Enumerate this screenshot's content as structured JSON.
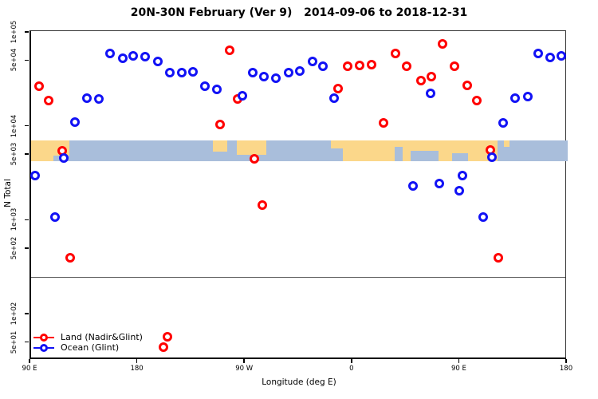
{
  "title": "20N-30N February (Ver 9)   2014-09-06 to 2018-12-31",
  "chart_data": {
    "type": "scatter",
    "title": "20N-30N February (Ver 9)   2014-09-06 to 2018-12-31",
    "xlabel": "Longitude (deg E)",
    "ylabel": "N Total",
    "x_axis": {
      "range": [
        90,
        540
      ],
      "note": "longitude axis wraps eastward: 90E to 180 to 90W to 0 to 90E to 180",
      "ticks": [
        90,
        180,
        270,
        360,
        450,
        540
      ],
      "tick_labels": [
        "90 E",
        "180",
        "90 W",
        "0",
        "90 E",
        "180"
      ]
    },
    "y_axis": {
      "scale": "log10",
      "log_range": [
        1.517,
        5.017
      ],
      "ticks": [
        100000,
        50000,
        10000,
        5000,
        1000,
        500,
        100,
        50
      ],
      "tick_labels": [
        "1e+05",
        "5e+04",
        "1e+04",
        "5e+03",
        "1e+03",
        "5e+02",
        "1e+02",
        "5e+01"
      ]
    },
    "reference_line_y": 250,
    "map_band": {
      "description": "strip map of Earth 20N-30N drawn across the plot",
      "y_top_value": 7100,
      "y_bottom_value": 4300,
      "ocean_color": "#A9BEDB",
      "land_color": "#FBD78A",
      "land_segments": [
        {
          "from": 90,
          "to": 122,
          "y0": 0,
          "y1": 0.75
        },
        {
          "from": 90,
          "to": 109,
          "y0": 0.7,
          "y1": 1.0
        },
        {
          "from": 242.5,
          "to": 254.5,
          "y0": 0,
          "y1": 0.55
        },
        {
          "from": 262.5,
          "to": 287,
          "y0": 0,
          "y1": 0.7
        },
        {
          "from": 341.5,
          "to": 351.5,
          "y0": 0,
          "y1": 0.4
        },
        {
          "from": 351.5,
          "to": 481,
          "y0": 0,
          "y1": 1.0
        },
        {
          "from": 486.5,
          "to": 491.5,
          "y0": 0,
          "y1": 0.3
        }
      ],
      "ocean_notches": [
        {
          "from": 395,
          "to": 401.5,
          "y0": 0.3,
          "y1": 1.0
        },
        {
          "from": 408.5,
          "to": 431.5,
          "y0": 0.5,
          "y1": 1.0
        },
        {
          "from": 443,
          "to": 456.5,
          "y0": 0.6,
          "y1": 1.0
        }
      ]
    },
    "series": [
      {
        "name": "Land (Nadir&Glint)",
        "color": "#FF0000",
        "points": [
          {
            "x": 96.7,
            "y": 27000
          },
          {
            "x": 104.5,
            "y": 18800
          },
          {
            "x": 256.7,
            "y": 64700
          },
          {
            "x": 263.4,
            "y": 19700
          },
          {
            "x": 347.6,
            "y": 25600
          },
          {
            "x": 355.7,
            "y": 44300
          },
          {
            "x": 365.3,
            "y": 45100
          },
          {
            "x": 375.5,
            "y": 45500
          },
          {
            "x": 395.4,
            "y": 60100
          },
          {
            "x": 404.7,
            "y": 44300
          },
          {
            "x": 417.0,
            "y": 31100
          },
          {
            "x": 425.9,
            "y": 33900
          },
          {
            "x": 435.0,
            "y": 76500
          },
          {
            "x": 445.3,
            "y": 44300
          },
          {
            "x": 455.8,
            "y": 27700
          },
          {
            "x": 463.6,
            "y": 19000
          },
          {
            "x": 248.5,
            "y": 10600
          },
          {
            "x": 385.7,
            "y": 11000
          },
          {
            "x": 115.9,
            "y": 5560
          },
          {
            "x": 277.4,
            "y": 4520
          },
          {
            "x": 475.0,
            "y": 5670
          },
          {
            "x": 283.7,
            "y": 1460
          },
          {
            "x": 123.0,
            "y": 400
          },
          {
            "x": 481.8,
            "y": 400
          },
          {
            "x": 204.1,
            "y": 58
          },
          {
            "x": 201.2,
            "y": 45
          }
        ]
      },
      {
        "name": "Ocean (Glint)",
        "color": "#1212F5",
        "points": [
          {
            "x": 126.8,
            "y": 11200
          },
          {
            "x": 136.8,
            "y": 20100
          },
          {
            "x": 146.8,
            "y": 19700
          },
          {
            "x": 156.0,
            "y": 60100
          },
          {
            "x": 166.9,
            "y": 53500
          },
          {
            "x": 175.6,
            "y": 56700
          },
          {
            "x": 185.8,
            "y": 55300
          },
          {
            "x": 196.3,
            "y": 49200
          },
          {
            "x": 206.3,
            "y": 37400
          },
          {
            "x": 216.4,
            "y": 37600
          },
          {
            "x": 225.7,
            "y": 38600
          },
          {
            "x": 235.6,
            "y": 26800
          },
          {
            "x": 245.6,
            "y": 25100
          },
          {
            "x": 267.0,
            "y": 21400
          },
          {
            "x": 276.1,
            "y": 37400
          },
          {
            "x": 285.2,
            "y": 33900
          },
          {
            "x": 295.5,
            "y": 33000
          },
          {
            "x": 306.0,
            "y": 37400
          },
          {
            "x": 315.5,
            "y": 38900
          },
          {
            "x": 325.8,
            "y": 49800
          },
          {
            "x": 334.5,
            "y": 43700
          },
          {
            "x": 344.1,
            "y": 20000
          },
          {
            "x": 425.2,
            "y": 22700
          },
          {
            "x": 495.7,
            "y": 20000
          },
          {
            "x": 506.4,
            "y": 20800
          },
          {
            "x": 515.0,
            "y": 60100
          },
          {
            "x": 525.3,
            "y": 54200
          },
          {
            "x": 534.6,
            "y": 56700
          },
          {
            "x": 117.6,
            "y": 4670
          },
          {
            "x": 476.5,
            "y": 4700
          },
          {
            "x": 93.1,
            "y": 3030
          },
          {
            "x": 110.1,
            "y": 1100
          },
          {
            "x": 410.3,
            "y": 2350
          },
          {
            "x": 432.4,
            "y": 2470
          },
          {
            "x": 448.9,
            "y": 2070
          },
          {
            "x": 451.8,
            "y": 3030
          },
          {
            "x": 468.9,
            "y": 1100
          },
          {
            "x": 485.7,
            "y": 11000
          }
        ]
      }
    ],
    "legend": {
      "position": "bottom-left",
      "entries": [
        {
          "label": "Land (Nadir&Glint)",
          "color": "#FF0000"
        },
        {
          "label": "Ocean (Glint)",
          "color": "#1212F5"
        }
      ]
    }
  }
}
